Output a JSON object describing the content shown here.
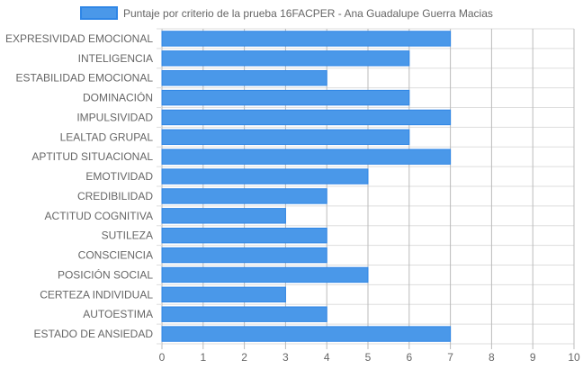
{
  "chart_data": {
    "type": "bar",
    "orientation": "horizontal",
    "categories": [
      "EXPRESIVIDAD EMOCIONAL",
      "INTELIGENCIA",
      "ESTABILIDAD EMOCIONAL",
      "DOMINACIÓN",
      "IMPULSIVIDAD",
      "LEALTAD GRUPAL",
      "APTITUD SITUACIONAL",
      "EMOTIVIDAD",
      "CREDIBILIDAD",
      "ACTITUD COGNITIVA",
      "SUTILEZA",
      "CONSCIENCIA",
      "POSICIÓN SOCIAL",
      "CERTEZA INDIVIDUAL",
      "AUTOESTIMA",
      "ESTADO DE ANSIEDAD"
    ],
    "series": [
      {
        "name": "Puntaje por criterio de la prueba 16FACPER - Ana Guadalupe Guerra Macias",
        "values": [
          7,
          6,
          4,
          6,
          7,
          6,
          7,
          5,
          4,
          3,
          4,
          4,
          5,
          3,
          4,
          7
        ]
      }
    ],
    "xlim": [
      0,
      10
    ],
    "xticks": [
      "0",
      "1",
      "2",
      "3",
      "4",
      "5",
      "6",
      "7",
      "8",
      "9",
      "10"
    ],
    "grid": true,
    "legend_position": "top",
    "colors": {
      "bar_fill": "#4a98e9",
      "bar_stroke": "#2f86e6",
      "grid": "#dddddd",
      "grid_strong": "#bbbbbb",
      "text": "#666666"
    }
  }
}
